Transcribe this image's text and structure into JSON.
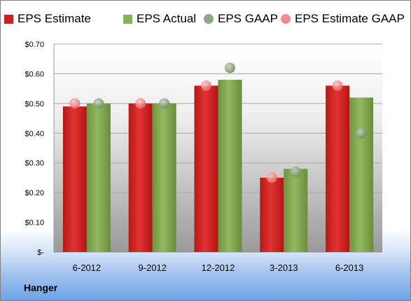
{
  "colors": {
    "estimate": "#cc1f1f",
    "actual": "#7fa64a",
    "gaap": "#7d9b6e",
    "estimate_gaap": "#ee8080"
  },
  "legend": [
    {
      "label": "EPS Estimate",
      "marker": "bar",
      "color": "#cc1f1f"
    },
    {
      "label": "EPS Actual",
      "marker": "bar",
      "color": "#8bb157"
    },
    {
      "label": "EPS GAAP",
      "marker": "dot",
      "color": "#8fa885"
    },
    {
      "label": "EPS Estimate GAAP",
      "marker": "dot",
      "color": "#f08c8c"
    }
  ],
  "footer": {
    "company": "Hanger"
  },
  "chart_data": {
    "type": "bar",
    "categories": [
      "6-2012",
      "9-2012",
      "12-2012",
      "3-2013",
      "6-2013"
    ],
    "series": [
      {
        "name": "EPS Estimate",
        "kind": "bar",
        "values": [
          0.49,
          0.5,
          0.56,
          0.25,
          0.56
        ]
      },
      {
        "name": "EPS Actual",
        "kind": "bar",
        "values": [
          0.5,
          0.5,
          0.58,
          0.28,
          0.52
        ]
      },
      {
        "name": "EPS GAAP",
        "kind": "scatter",
        "values": [
          0.5,
          0.5,
          0.62,
          0.27,
          0.4
        ]
      },
      {
        "name": "EPS Estimate GAAP",
        "kind": "scatter",
        "values": [
          0.5,
          0.5,
          0.56,
          0.25,
          0.56
        ]
      }
    ],
    "yticks": [
      {
        "value": 0,
        "label": "$-"
      },
      {
        "value": 0.1,
        "label": "$0.10"
      },
      {
        "value": 0.2,
        "label": "$0.20"
      },
      {
        "value": 0.3,
        "label": "$0.30"
      },
      {
        "value": 0.4,
        "label": "$0.40"
      },
      {
        "value": 0.5,
        "label": "$0.50"
      },
      {
        "value": 0.6,
        "label": "$0.60"
      },
      {
        "value": 0.7,
        "label": "$0.70"
      }
    ],
    "ylim": [
      0,
      0.7
    ],
    "grid": true,
    "legend_position": "top"
  }
}
